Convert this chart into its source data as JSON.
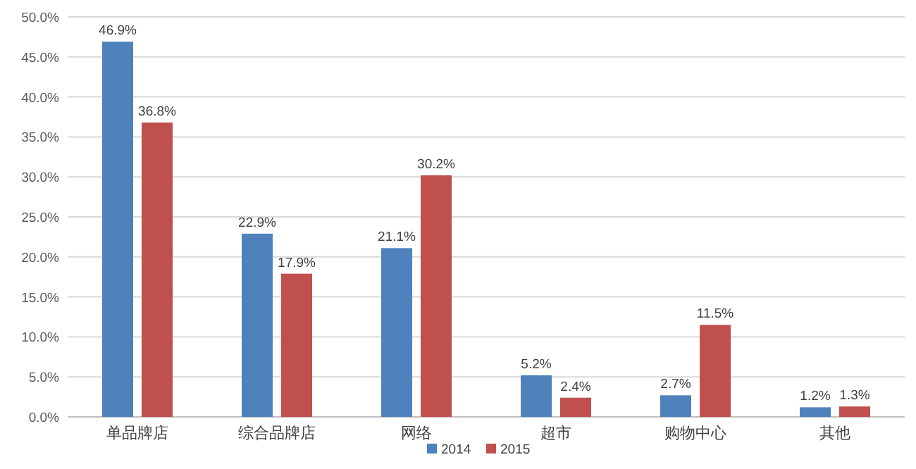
{
  "chart_data": {
    "type": "bar",
    "categories": [
      "单品牌店",
      "综合品牌店",
      "网络",
      "超市",
      "购物中心",
      "其他"
    ],
    "series": [
      {
        "name": "2014",
        "color": "#4f81bd",
        "values": [
          46.9,
          22.9,
          21.1,
          5.2,
          2.7,
          1.2
        ],
        "value_labels": [
          "46.9%",
          "22.9%",
          "21.1%",
          "5.2%",
          "2.7%",
          "1.2%"
        ]
      },
      {
        "name": "2015",
        "color": "#c0504d",
        "values": [
          36.8,
          17.9,
          30.2,
          2.4,
          11.5,
          1.3
        ],
        "value_labels": [
          "36.8%",
          "17.9%",
          "30.2%",
          "2.4%",
          "11.5%",
          "1.3%"
        ]
      }
    ],
    "ylim": [
      0,
      50
    ],
    "yticks": [
      {
        "value": 0,
        "label": "0.0%"
      },
      {
        "value": 5,
        "label": "5.0%"
      },
      {
        "value": 10,
        "label": "10.0%"
      },
      {
        "value": 15,
        "label": "15.0%"
      },
      {
        "value": 20,
        "label": "20.0%"
      },
      {
        "value": 25,
        "label": "25.0%"
      },
      {
        "value": 30,
        "label": "30.0%"
      },
      {
        "value": 35,
        "label": "35.0%"
      },
      {
        "value": 40,
        "label": "40.0%"
      },
      {
        "value": 45,
        "label": "45.0%"
      },
      {
        "value": 50,
        "label": "50.0%"
      }
    ],
    "grid": "y",
    "legend": "bottom"
  }
}
